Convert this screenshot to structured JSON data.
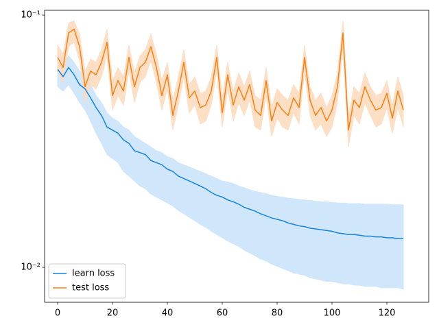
{
  "chart_data": {
    "type": "line",
    "log_y": true,
    "legend": "lower left",
    "x": [
      0,
      2,
      4,
      6,
      8,
      10,
      12,
      14,
      16,
      18,
      20,
      22,
      24,
      26,
      28,
      30,
      32,
      34,
      36,
      38,
      40,
      42,
      44,
      46,
      48,
      50,
      52,
      54,
      56,
      58,
      60,
      62,
      64,
      66,
      68,
      70,
      72,
      74,
      76,
      78,
      80,
      82,
      84,
      86,
      88,
      90,
      92,
      94,
      96,
      98,
      100,
      102,
      104,
      106,
      108,
      110,
      112,
      114,
      116,
      118,
      120,
      122,
      124,
      126
    ],
    "xlim": [
      -4.75,
      135.25
    ],
    "xticks": [
      0,
      20,
      40,
      60,
      80,
      100,
      120
    ],
    "ylim": [
      0.00727,
      0.1045
    ],
    "yticks": [
      {
        "value": 0.01,
        "label": "10⁻²"
      },
      {
        "value": 0.1,
        "label": "10⁻¹"
      }
    ],
    "series": [
      {
        "name": "learn loss",
        "color": "#1283e0",
        "band_color": "#cce4fb",
        "values": [
          0.061,
          0.057,
          0.062,
          0.058,
          0.053,
          0.051,
          0.047,
          0.043,
          0.04,
          0.036,
          0.035,
          0.034,
          0.032,
          0.031,
          0.029,
          0.0285,
          0.028,
          0.0265,
          0.026,
          0.0255,
          0.0245,
          0.024,
          0.023,
          0.0225,
          0.022,
          0.0215,
          0.021,
          0.0205,
          0.0198,
          0.0193,
          0.019,
          0.0185,
          0.0182,
          0.0178,
          0.0173,
          0.017,
          0.0167,
          0.0163,
          0.016,
          0.0157,
          0.0155,
          0.0153,
          0.015,
          0.0148,
          0.0146,
          0.0145,
          0.0143,
          0.0142,
          0.0141,
          0.014,
          0.0139,
          0.0137,
          0.0136,
          0.0135,
          0.0135,
          0.0134,
          0.0133,
          0.0133,
          0.0132,
          0.0132,
          0.0131,
          0.0131,
          0.013,
          0.013
        ],
        "upper": [
          0.068,
          0.064,
          0.069,
          0.065,
          0.06,
          0.057,
          0.053,
          0.048,
          0.045,
          0.041,
          0.039,
          0.038,
          0.036,
          0.035,
          0.033,
          0.032,
          0.031,
          0.03,
          0.029,
          0.0285,
          0.0275,
          0.027,
          0.026,
          0.0255,
          0.025,
          0.0245,
          0.024,
          0.0235,
          0.023,
          0.0225,
          0.022,
          0.0218,
          0.0215,
          0.021,
          0.0207,
          0.0203,
          0.02,
          0.0198,
          0.0196,
          0.0193,
          0.0191,
          0.019,
          0.0188,
          0.0187,
          0.0186,
          0.0185,
          0.0184,
          0.0183,
          0.0182,
          0.0182,
          0.0181,
          0.018,
          0.018,
          0.0179,
          0.0179,
          0.0179,
          0.0178,
          0.0178,
          0.0178,
          0.0178,
          0.0178,
          0.0177,
          0.0177,
          0.0177
        ],
        "lower": [
          0.052,
          0.05,
          0.053,
          0.049,
          0.045,
          0.042,
          0.038,
          0.034,
          0.031,
          0.028,
          0.027,
          0.026,
          0.024,
          0.023,
          0.022,
          0.021,
          0.0205,
          0.0195,
          0.019,
          0.0185,
          0.018,
          0.0175,
          0.0168,
          0.0163,
          0.0158,
          0.0153,
          0.0148,
          0.0144,
          0.0139,
          0.0135,
          0.0131,
          0.0127,
          0.0124,
          0.0121,
          0.0117,
          0.0114,
          0.0111,
          0.0108,
          0.0106,
          0.0103,
          0.0101,
          0.0099,
          0.0097,
          0.0095,
          0.0094,
          0.0093,
          0.0091,
          0.009,
          0.0089,
          0.0088,
          0.0088,
          0.0087,
          0.0086,
          0.0086,
          0.0085,
          0.0085,
          0.0084,
          0.0084,
          0.0084,
          0.0083,
          0.0083,
          0.0083,
          0.0083,
          0.0082
        ]
      },
      {
        "name": "test loss",
        "color": "#ff7f0e",
        "band_color": "#fddcc0",
        "values": [
          0.068,
          0.062,
          0.085,
          0.088,
          0.075,
          0.052,
          0.06,
          0.058,
          0.065,
          0.078,
          0.048,
          0.055,
          0.05,
          0.068,
          0.052,
          0.062,
          0.065,
          0.075,
          0.062,
          0.048,
          0.058,
          0.04,
          0.05,
          0.065,
          0.047,
          0.05,
          0.043,
          0.044,
          0.05,
          0.068,
          0.041,
          0.058,
          0.044,
          0.052,
          0.046,
          0.053,
          0.042,
          0.04,
          0.055,
          0.038,
          0.045,
          0.042,
          0.04,
          0.047,
          0.043,
          0.068,
          0.046,
          0.04,
          0.043,
          0.038,
          0.042,
          0.052,
          0.085,
          0.035,
          0.046,
          0.043,
          0.052,
          0.046,
          0.042,
          0.043,
          0.049,
          0.039,
          0.05,
          0.042
        ],
        "upper": [
          0.076,
          0.07,
          0.093,
          0.095,
          0.084,
          0.06,
          0.067,
          0.065,
          0.073,
          0.088,
          0.055,
          0.062,
          0.057,
          0.076,
          0.059,
          0.069,
          0.073,
          0.084,
          0.07,
          0.055,
          0.065,
          0.046,
          0.057,
          0.073,
          0.053,
          0.057,
          0.049,
          0.05,
          0.057,
          0.076,
          0.047,
          0.065,
          0.05,
          0.059,
          0.052,
          0.06,
          0.048,
          0.046,
          0.062,
          0.043,
          0.051,
          0.048,
          0.046,
          0.053,
          0.049,
          0.076,
          0.052,
          0.046,
          0.049,
          0.043,
          0.048,
          0.059,
          0.095,
          0.04,
          0.052,
          0.049,
          0.059,
          0.052,
          0.048,
          0.049,
          0.055,
          0.044,
          0.057,
          0.048
        ],
        "lower": [
          0.06,
          0.054,
          0.075,
          0.078,
          0.066,
          0.045,
          0.053,
          0.051,
          0.057,
          0.069,
          0.042,
          0.048,
          0.044,
          0.06,
          0.045,
          0.054,
          0.057,
          0.066,
          0.054,
          0.042,
          0.051,
          0.035,
          0.044,
          0.057,
          0.041,
          0.044,
          0.037,
          0.038,
          0.044,
          0.06,
          0.036,
          0.051,
          0.038,
          0.045,
          0.04,
          0.046,
          0.036,
          0.035,
          0.048,
          0.033,
          0.039,
          0.036,
          0.035,
          0.041,
          0.037,
          0.06,
          0.04,
          0.035,
          0.037,
          0.033,
          0.036,
          0.045,
          0.075,
          0.03,
          0.04,
          0.037,
          0.045,
          0.04,
          0.036,
          0.037,
          0.043,
          0.034,
          0.043,
          0.036
        ]
      }
    ]
  }
}
